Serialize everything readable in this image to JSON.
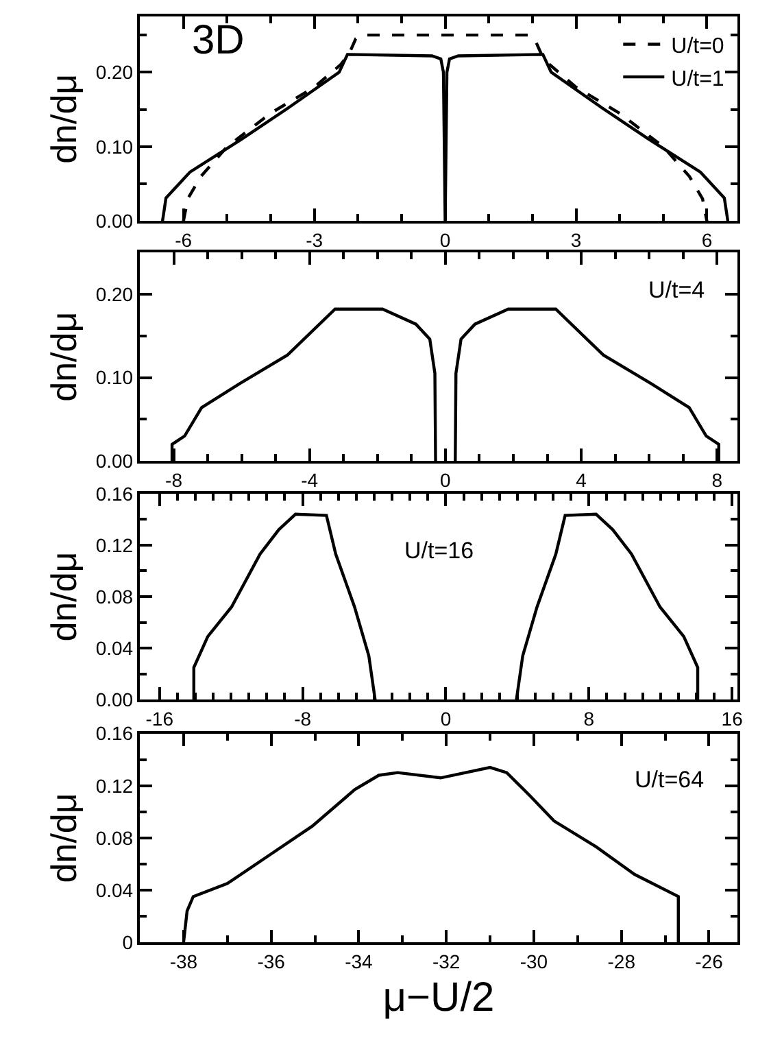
{
  "chart_data": [
    {
      "type": "line",
      "ylabel": "dn/dμ",
      "annotations": [
        "3D"
      ],
      "legend": "top right",
      "xlim": [
        -7,
        6.7
      ],
      "ylim": [
        0,
        0.275
      ],
      "xticks": [
        -6,
        {
          "value": -5,
          "label": null
        },
        {
          "value": -4,
          "label": null
        },
        -3,
        {
          "value": -2,
          "label": null
        },
        {
          "value": -1,
          "label": null
        },
        0,
        {
          "value": 1,
          "label": null
        },
        {
          "value": 2,
          "label": null
        },
        3,
        {
          "value": 4,
          "label": null
        },
        {
          "value": 5,
          "label": null
        },
        6
      ],
      "yticks": [
        {
          "value": 0,
          "label": "0.00"
        },
        {
          "value": 0.05,
          "label": null
        },
        {
          "value": 0.1,
          "label": "0.10"
        },
        {
          "value": 0.15,
          "label": null
        },
        {
          "value": 0.2,
          "label": "0.20"
        },
        {
          "value": 0.25,
          "label": null
        }
      ],
      "series": [
        {
          "name": "U/t=0",
          "color": "#000000",
          "line_style": "dashed",
          "x": [
            -6.0,
            -5.9,
            -5.6,
            -5.0,
            -4.0,
            -3.0,
            -2.4,
            -2.2,
            -2.05,
            -1.9,
            1.9,
            2.05,
            2.2,
            2.4,
            3.0,
            4.0,
            5.0,
            5.6,
            5.9,
            6.0
          ],
          "values": [
            0,
            0.03,
            0.06,
            0.1,
            0.145,
            0.18,
            0.21,
            0.225,
            0.245,
            0.25,
            0.25,
            0.245,
            0.225,
            0.21,
            0.18,
            0.145,
            0.1,
            0.06,
            0.03,
            0
          ]
        },
        {
          "name": "U/t=1",
          "color": "#000000",
          "line_style": "solid",
          "x": [
            -6.48,
            -6.4,
            -5.85,
            -4.67,
            -3.6,
            -2.43,
            -2.24,
            -0.3,
            -0.1,
            -0.04,
            -0.02,
            0,
            0.02,
            0.04,
            0.1,
            0.3,
            2.24,
            2.43,
            3.6,
            4.67,
            5.85,
            6.4,
            6.48
          ],
          "values": [
            0,
            0.031,
            0.066,
            0.11,
            0.152,
            0.2,
            0.224,
            0.222,
            0.218,
            0.2,
            0.1,
            0,
            0.1,
            0.2,
            0.218,
            0.222,
            0.224,
            0.2,
            0.152,
            0.11,
            0.066,
            0.031,
            0
          ]
        }
      ]
    },
    {
      "type": "line",
      "ylabel": "dn/dμ",
      "annotations": [
        "U/t=4"
      ],
      "xlim": [
        -9,
        8.6
      ],
      "ylim": [
        0,
        0.25
      ],
      "xticks": [
        -8,
        {
          "value": -7,
          "label": null
        },
        {
          "value": -6,
          "label": null
        },
        {
          "value": -5,
          "label": null
        },
        -4,
        {
          "value": -3,
          "label": null
        },
        {
          "value": -2,
          "label": null
        },
        {
          "value": -1,
          "label": null
        },
        0,
        {
          "value": 1,
          "label": null
        },
        {
          "value": 2,
          "label": null
        },
        {
          "value": 3,
          "label": null
        },
        4,
        {
          "value": 5,
          "label": null
        },
        {
          "value": 6,
          "label": null
        },
        {
          "value": 7,
          "label": null
        },
        8
      ],
      "yticks": [
        {
          "value": 0,
          "label": "0.00"
        },
        {
          "value": 0.05,
          "label": null
        },
        {
          "value": 0.1,
          "label": "0.10"
        },
        {
          "value": 0.15,
          "label": null
        },
        {
          "value": 0.2,
          "label": "0.20"
        }
      ],
      "series": [
        {
          "color": "#000000",
          "line_style": "solid",
          "x": [
            -8.05,
            -8.05,
            -7.68,
            -7.18,
            -6.05,
            -4.65,
            -3.25,
            -1.85,
            -0.87,
            -0.46,
            -0.31,
            -0.29,
            null,
            0.29,
            0.31,
            0.46,
            0.87,
            1.85,
            3.25,
            4.65,
            6.05,
            7.18,
            7.68,
            8.05,
            8.05
          ],
          "values": [
            0,
            0.02,
            0.03,
            0.064,
            0.093,
            0.127,
            0.182,
            0.182,
            0.164,
            0.146,
            0.105,
            0,
            null,
            0,
            0.105,
            0.146,
            0.164,
            0.182,
            0.182,
            0.127,
            0.093,
            0.064,
            0.03,
            0.02,
            0
          ]
        }
      ]
    },
    {
      "type": "line",
      "ylabel": "dn/dμ",
      "annotations": [
        "U/t=16"
      ],
      "xlim": [
        -17.1,
        16.3
      ],
      "ylim": [
        0,
        0.16
      ],
      "xticks": [
        -16,
        {
          "value": -15,
          "label": null
        },
        {
          "value": -14,
          "label": null
        },
        {
          "value": -13,
          "label": null
        },
        {
          "value": -12,
          "label": null
        },
        {
          "value": -11,
          "label": null
        },
        {
          "value": -10,
          "label": null
        },
        {
          "value": -9,
          "label": null
        },
        -8,
        {
          "value": -7,
          "label": null
        },
        {
          "value": -6,
          "label": null
        },
        {
          "value": -5,
          "label": null
        },
        {
          "value": -4,
          "label": null
        },
        {
          "value": -3,
          "label": null
        },
        {
          "value": -2,
          "label": null
        },
        {
          "value": -1,
          "label": null
        },
        0,
        {
          "value": 1,
          "label": null
        },
        {
          "value": 2,
          "label": null
        },
        {
          "value": 3,
          "label": null
        },
        {
          "value": 4,
          "label": null
        },
        {
          "value": 5,
          "label": null
        },
        {
          "value": 6,
          "label": null
        },
        {
          "value": 7,
          "label": null
        },
        8,
        {
          "value": 9,
          "label": null
        },
        {
          "value": 10,
          "label": null
        },
        {
          "value": 11,
          "label": null
        },
        {
          "value": 12,
          "label": null
        },
        {
          "value": 13,
          "label": null
        },
        {
          "value": 14,
          "label": null
        },
        {
          "value": 15,
          "label": null
        },
        16
      ],
      "yticks": [
        {
          "value": 0,
          "label": "0.00"
        },
        {
          "value": 0.02,
          "label": null
        },
        {
          "value": 0.04,
          "label": "0.04"
        },
        {
          "value": 0.06,
          "label": null
        },
        {
          "value": 0.08,
          "label": "0.08"
        },
        {
          "value": 0.1,
          "label": null
        },
        {
          "value": 0.12,
          "label": "0.12"
        },
        {
          "value": 0.14,
          "label": null
        },
        {
          "value": 0.16,
          "label": "0.16"
        }
      ],
      "series": [
        {
          "color": "#000000",
          "line_style": "solid",
          "x": [
            -14.08,
            -14.08,
            -13.3,
            -11.97,
            -10.38,
            -9.33,
            -8.4,
            -6.67,
            -6.15,
            -5.1,
            -4.3,
            -3.95,
            null,
            3.95,
            4.3,
            5.1,
            6.15,
            6.67,
            8.4,
            9.33,
            10.38,
            11.97,
            13.3,
            14.08,
            14.08
          ],
          "values": [
            0,
            0.025,
            0.049,
            0.072,
            0.113,
            0.132,
            0.144,
            0.143,
            0.113,
            0.072,
            0.034,
            0,
            null,
            0,
            0.034,
            0.072,
            0.113,
            0.143,
            0.144,
            0.132,
            0.113,
            0.072,
            0.049,
            0.025,
            0
          ]
        }
      ]
    },
    {
      "type": "line",
      "ylabel": "dn/dμ",
      "xlabel": "μ−U/2",
      "annotations": [
        "U/t=64"
      ],
      "xlim": [
        -39,
        -25.35
      ],
      "ylim": [
        0,
        0.16
      ],
      "xticks": [
        -38,
        {
          "value": -37,
          "label": null
        },
        -36,
        {
          "value": -35,
          "label": null
        },
        -34,
        {
          "value": -33,
          "label": null
        },
        -32,
        {
          "value": -31,
          "label": null
        },
        -30,
        {
          "value": -29,
          "label": null
        },
        -28,
        {
          "value": -27,
          "label": null
        },
        -26
      ],
      "yticks": [
        0,
        {
          "value": 0.02,
          "label": null
        },
        {
          "value": 0.04,
          "label": "0.04"
        },
        {
          "value": 0.06,
          "label": null
        },
        {
          "value": 0.08,
          "label": "0.08"
        },
        {
          "value": 0.1,
          "label": null
        },
        {
          "value": 0.12,
          "label": "0.12"
        },
        {
          "value": 0.14,
          "label": null
        },
        {
          "value": 0.16,
          "label": "0.16"
        }
      ],
      "series": [
        {
          "color": "#000000",
          "line_style": "solid",
          "x": [
            -38.0,
            -37.92,
            -37.78,
            -37.0,
            -36.03,
            -35.06,
            -34.09,
            -33.54,
            -33.11,
            -32.13,
            -31.0,
            -30.62,
            -30.08,
            -29.54,
            -28.57,
            -27.7,
            -26.7,
            -26.7
          ],
          "values": [
            0,
            0.024,
            0.035,
            0.045,
            0.067,
            0.089,
            0.117,
            0.128,
            0.13,
            0.126,
            0.134,
            0.13,
            0.112,
            0.093,
            0.073,
            0.052,
            0.035,
            0
          ]
        }
      ]
    }
  ]
}
